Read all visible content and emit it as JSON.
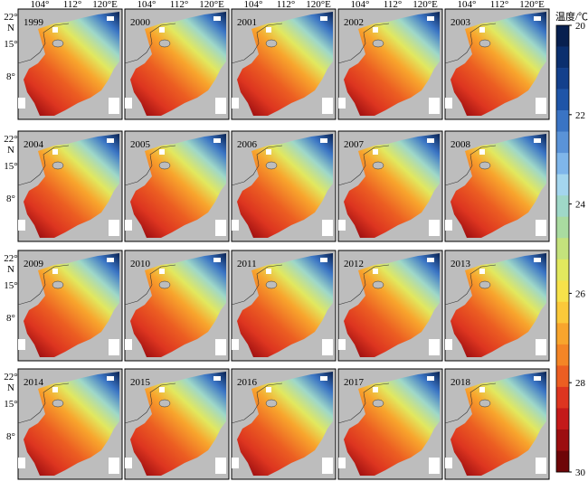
{
  "panels": [
    {
      "label": "1999"
    },
    {
      "label": "2000"
    },
    {
      "label": "2001"
    },
    {
      "label": "2002"
    },
    {
      "label": "2003"
    },
    {
      "label": "2004"
    },
    {
      "label": "2005"
    },
    {
      "label": "2006"
    },
    {
      "label": "2007"
    },
    {
      "label": "2008"
    },
    {
      "label": "2009"
    },
    {
      "label": "2010"
    },
    {
      "label": "2011"
    },
    {
      "label": "2012"
    },
    {
      "label": "2013"
    },
    {
      "label": "2014"
    },
    {
      "label": "2015"
    },
    {
      "label": "2016"
    },
    {
      "label": "2017"
    },
    {
      "label": "2018"
    }
  ],
  "x_labels": [
    "104°",
    "112°",
    "120°E"
  ],
  "y_labels": [
    "22°",
    "N",
    "15°",
    "8°"
  ],
  "colorbar": {
    "title": "温度/℃",
    "ticks": [
      20,
      22,
      24,
      26,
      28,
      30
    ],
    "colors": [
      "#08204f",
      "#0b2f6e",
      "#13408c",
      "#1f55a8",
      "#3a74c4",
      "#5a93d8",
      "#7fb6ea",
      "#a4d6ee",
      "#9fd8c8",
      "#a9dba0",
      "#c4e27c",
      "#e2e85e",
      "#f7e24a",
      "#fbc93a",
      "#f8a52d",
      "#f48526",
      "#ec5e22",
      "#dd3520",
      "#c41a1a",
      "#9c0e10",
      "#6e0508"
    ]
  }
}
